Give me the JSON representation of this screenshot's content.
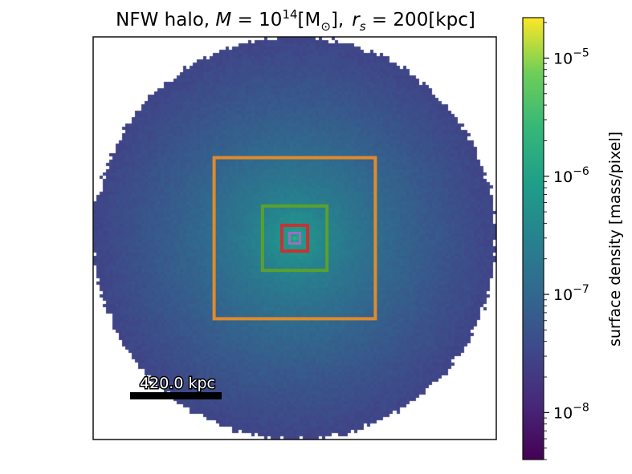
{
  "chart_data": {
    "type": "heatmap",
    "title": {
      "prefix": "NFW halo, ",
      "mass_symbol": "M",
      "eq1": " = 10",
      "mass_exp": "14",
      "mass_unit_open": "[M",
      "mass_unit_sub": "⊙",
      "mass_unit_close": "],",
      "rs_symbol": "r",
      "rs_sub": "s",
      "rs_value": " = 200[kpc]"
    },
    "colorbar": {
      "label": "surface density [mass/pixel]",
      "scale": "log",
      "colormap": "viridis",
      "range": [
        4e-09,
        2.2e-05
      ],
      "ticks": [
        {
          "value": 1e-05,
          "base": "10",
          "exp": "−5"
        },
        {
          "value": 1e-06,
          "base": "10",
          "exp": "−6"
        },
        {
          "value": 1e-07,
          "base": "10",
          "exp": "−7"
        },
        {
          "value": 1e-08,
          "base": "10",
          "exp": "−8"
        }
      ]
    },
    "image": {
      "halo_radius_fraction": 0.5,
      "peak_value": 2e-06,
      "edge_value": 3e-08,
      "background_color": "#ffffff"
    },
    "scale_bar": {
      "label": "420.0 kpc"
    },
    "zoom_boxes": [
      {
        "color": "#e08a2c",
        "half_width_fraction": 0.2
      },
      {
        "color": "#5aa02c",
        "half_width_fraction": 0.08
      },
      {
        "color": "#c83232",
        "half_width_fraction": 0.032
      },
      {
        "color": "#9b6fc4",
        "half_width_fraction": 0.013
      }
    ]
  }
}
